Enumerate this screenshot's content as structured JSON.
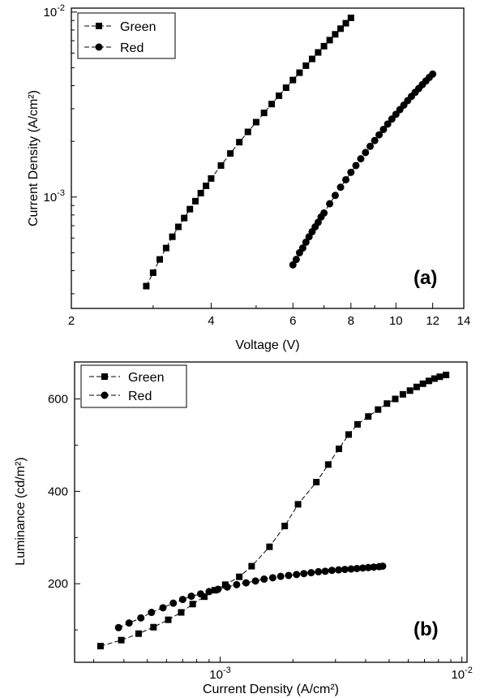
{
  "chart_data": [
    {
      "type": "scatter",
      "panel_label": "(a)",
      "xlabel": "Voltage (V)",
      "ylabel": "Current Density (A/cm²)",
      "xscale": "log",
      "yscale": "log",
      "xlim": [
        2,
        14
      ],
      "ylim": [
        0.00025,
        0.0105
      ],
      "xticks": [
        2,
        4,
        6,
        8,
        10,
        12,
        14
      ],
      "xtick_labels": [
        "2",
        "4",
        "6",
        "8",
        "10",
        "12",
        "14"
      ],
      "yticks": [
        0.001,
        0.01
      ],
      "ytick_labels": [
        {
          "base": "10",
          "exp": "-3"
        },
        {
          "base": "10",
          "exp": "-2"
        }
      ],
      "legend_position": "top-left",
      "series": [
        {
          "name": "Green",
          "marker": "square",
          "line": "dashed",
          "x": [
            2.9,
            3.0,
            3.1,
            3.2,
            3.3,
            3.4,
            3.5,
            3.6,
            3.7,
            3.8,
            3.9,
            4.0,
            4.2,
            4.4,
            4.6,
            4.8,
            5.0,
            5.2,
            5.4,
            5.6,
            5.8,
            6.0,
            6.2,
            6.4,
            6.6,
            6.8,
            7.0,
            7.2,
            7.4,
            7.6,
            7.8,
            8.0
          ],
          "y": [
            0.00033,
            0.00039,
            0.00046,
            0.00053,
            0.00061,
            0.00069,
            0.00077,
            0.00086,
            0.00095,
            0.00105,
            0.00115,
            0.00126,
            0.00148,
            0.00172,
            0.00198,
            0.00225,
            0.00254,
            0.00285,
            0.00318,
            0.00353,
            0.0039,
            0.00429,
            0.0047,
            0.00513,
            0.00558,
            0.00605,
            0.00654,
            0.00705,
            0.00758,
            0.00813,
            0.0087,
            0.0093
          ]
        },
        {
          "name": "Red",
          "marker": "circle",
          "line": "dashed",
          "x": [
            6.0,
            6.1,
            6.2,
            6.3,
            6.4,
            6.5,
            6.6,
            6.7,
            6.8,
            6.9,
            7.0,
            7.2,
            7.4,
            7.6,
            7.8,
            8.0,
            8.2,
            8.4,
            8.6,
            8.8,
            9.0,
            9.2,
            9.4,
            9.6,
            9.8,
            10.0,
            10.2,
            10.4,
            10.6,
            10.8,
            11.0,
            11.2,
            11.4,
            11.6,
            11.8,
            12.0
          ],
          "y": [
            0.00043,
            0.00046,
            0.0005,
            0.00053,
            0.00057,
            0.00061,
            0.00065,
            0.00069,
            0.00073,
            0.00078,
            0.00082,
            0.00092,
            0.00102,
            0.00113,
            0.00124,
            0.00136,
            0.00148,
            0.00161,
            0.00174,
            0.00188,
            0.00202,
            0.00217,
            0.00232,
            0.00248,
            0.00264,
            0.0028,
            0.00297,
            0.00314,
            0.00332,
            0.0035,
            0.00368,
            0.00386,
            0.00405,
            0.00424,
            0.00443,
            0.00462
          ]
        }
      ]
    },
    {
      "type": "scatter",
      "panel_label": "(b)",
      "xlabel": "Current Density (A/cm²)",
      "ylabel": "Luminance (cd/m²)",
      "xscale": "log",
      "yscale": "linear",
      "xlim": [
        0.00025,
        0.0105
      ],
      "ylim": [
        30,
        680
      ],
      "xticks": [
        0.001,
        0.01
      ],
      "xtick_labels": [
        {
          "base": "10",
          "exp": "-3"
        },
        {
          "base": "10",
          "exp": "-2"
        }
      ],
      "yticks": [
        200,
        400,
        600
      ],
      "ytick_labels": [
        "200",
        "400",
        "600"
      ],
      "legend_position": "top-left",
      "series": [
        {
          "name": "Green",
          "marker": "square",
          "line": "dashed",
          "x": [
            0.00032,
            0.00039,
            0.00046,
            0.00053,
            0.00061,
            0.00069,
            0.00077,
            0.00086,
            0.00095,
            0.00105,
            0.0012,
            0.00135,
            0.0016,
            0.00185,
            0.0021,
            0.0025,
            0.0028,
            0.0031,
            0.0034,
            0.0037,
            0.0041,
            0.0045,
            0.0049,
            0.0053,
            0.0057,
            0.0061,
            0.0065,
            0.0069,
            0.0073,
            0.0077,
            0.0081,
            0.0086
          ],
          "y": [
            65,
            78,
            92,
            106,
            122,
            138,
            156,
            172,
            186,
            198,
            215,
            238,
            280,
            325,
            372,
            420,
            458,
            492,
            523,
            545,
            562,
            577,
            590,
            600,
            610,
            618,
            626,
            633,
            639,
            644,
            648,
            652
          ]
        },
        {
          "name": "Red",
          "marker": "circle",
          "line": "dashed",
          "x": [
            0.00038,
            0.00042,
            0.00047,
            0.00052,
            0.00058,
            0.00064,
            0.0007,
            0.00076,
            0.00083,
            0.0009,
            0.00098,
            0.00107,
            0.00117,
            0.00128,
            0.0014,
            0.00152,
            0.00165,
            0.00178,
            0.00192,
            0.00207,
            0.00222,
            0.00238,
            0.00255,
            0.00272,
            0.0029,
            0.00309,
            0.00328,
            0.00348,
            0.00368,
            0.00389,
            0.0041,
            0.00432,
            0.00455,
            0.0047
          ],
          "y": [
            105,
            115,
            126,
            138,
            148,
            158,
            166,
            173,
            178,
            183,
            188,
            193,
            198,
            202,
            206,
            210,
            213,
            216,
            218,
            220,
            222,
            224,
            226,
            227,
            229,
            230,
            231,
            232,
            233,
            234,
            235,
            236,
            237,
            238
          ]
        }
      ]
    }
  ]
}
